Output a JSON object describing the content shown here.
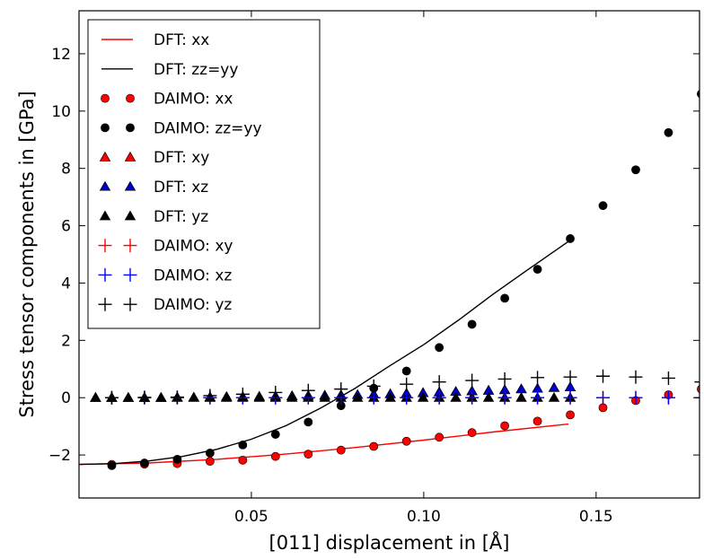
{
  "chart_data": {
    "type": "scatter",
    "xlabel": "[011] displacement in [Å]",
    "ylabel": "Stress tensor components in [GPa]",
    "xlim": [
      0.0,
      0.18
    ],
    "ylim": [
      -3.5,
      13.5
    ],
    "xticks": [
      0.05,
      0.1,
      0.15
    ],
    "xtick_labels": [
      "0.05",
      "0.10",
      "0.15"
    ],
    "yticks": [
      -2,
      0,
      2,
      4,
      6,
      8,
      10,
      12
    ],
    "ytick_labels": [
      "−2",
      "0",
      "2",
      "4",
      "6",
      "8",
      "10",
      "12"
    ],
    "grid": false,
    "legend_position": "upper-left",
    "series": [
      {
        "name": "DFT: xx",
        "kind": "line",
        "color": "#ff0000",
        "x": [
          0.0,
          0.02,
          0.04,
          0.06,
          0.08,
          0.1,
          0.12,
          0.142
        ],
        "y": [
          -2.33,
          -2.28,
          -2.15,
          -1.97,
          -1.74,
          -1.48,
          -1.2,
          -0.92
        ]
      },
      {
        "name": "DFT: zz=yy",
        "kind": "line",
        "color": "#000000",
        "x": [
          0.0,
          0.01,
          0.02,
          0.03,
          0.04,
          0.05,
          0.06,
          0.07,
          0.08,
          0.09,
          0.1,
          0.11,
          0.12,
          0.13,
          0.142
        ],
        "y": [
          -2.33,
          -2.3,
          -2.21,
          -2.05,
          -1.8,
          -1.45,
          -0.98,
          -0.37,
          0.32,
          1.1,
          1.85,
          2.7,
          3.6,
          4.45,
          5.45
        ]
      },
      {
        "name": "DAIMO: xx",
        "kind": "circle",
        "color": "#ff0000",
        "x": [
          0.0095,
          0.019,
          0.0285,
          0.038,
          0.0475,
          0.057,
          0.0665,
          0.076,
          0.0855,
          0.095,
          0.1045,
          0.114,
          0.1235,
          0.133,
          0.1425,
          0.152,
          0.1615,
          0.171,
          0.1805
        ],
        "y": [
          -2.33,
          -2.32,
          -2.3,
          -2.22,
          -2.18,
          -2.05,
          -1.97,
          -1.83,
          -1.7,
          -1.52,
          -1.38,
          -1.22,
          -0.98,
          -0.82,
          -0.6,
          -0.35,
          -0.1,
          0.1,
          0.3
        ]
      },
      {
        "name": "DAIMO: zz=yy",
        "kind": "circle",
        "color": "#000000",
        "x": [
          0.0095,
          0.019,
          0.0285,
          0.038,
          0.0475,
          0.057,
          0.0665,
          0.076,
          0.0855,
          0.095,
          0.1045,
          0.114,
          0.1235,
          0.133,
          0.1425,
          0.152,
          0.1615,
          0.171,
          0.1805
        ],
        "y": [
          -2.37,
          -2.28,
          -2.15,
          -1.93,
          -1.65,
          -1.28,
          -0.85,
          -0.28,
          0.33,
          0.93,
          1.75,
          2.56,
          3.47,
          4.48,
          5.55,
          6.7,
          7.95,
          9.25,
          10.6
        ]
      },
      {
        "name": "DFT: xy",
        "kind": "triangle",
        "color": "#ff0000",
        "x": [
          0.0048,
          0.0095,
          0.0143,
          0.019,
          0.0238,
          0.0285,
          0.0333,
          0.038,
          0.0428,
          0.0475,
          0.0523,
          0.057,
          0.0618,
          0.0665,
          0.0713,
          0.076,
          0.0808,
          0.0855,
          0.0903,
          0.095,
          0.0998,
          0.1045,
          0.1093,
          0.114,
          0.1188,
          0.1235,
          0.1283,
          0.133,
          0.1378,
          0.1425
        ],
        "y": [
          0.0,
          0.0,
          0.0,
          0.0,
          0.0,
          0.01,
          0.01,
          0.02,
          0.03,
          0.03,
          0.04,
          0.05,
          0.06,
          0.07,
          0.08,
          0.09,
          0.1,
          0.12,
          0.13,
          0.15,
          0.17,
          0.19,
          0.21,
          0.23,
          0.25,
          0.27,
          0.3,
          0.32,
          0.35,
          0.37
        ]
      },
      {
        "name": "DFT: xz",
        "kind": "triangle",
        "color": "#0000cc",
        "x": [
          0.0048,
          0.0095,
          0.0143,
          0.019,
          0.0238,
          0.0285,
          0.0333,
          0.038,
          0.0428,
          0.0475,
          0.0523,
          0.057,
          0.0618,
          0.0665,
          0.0713,
          0.076,
          0.0808,
          0.0855,
          0.0903,
          0.095,
          0.0998,
          0.1045,
          0.1093,
          0.114,
          0.1188,
          0.1235,
          0.1283,
          0.133,
          0.1378,
          0.1425
        ],
        "y": [
          0.0,
          0.0,
          0.0,
          0.0,
          0.0,
          0.01,
          0.01,
          0.02,
          0.03,
          0.03,
          0.04,
          0.05,
          0.06,
          0.07,
          0.08,
          0.09,
          0.1,
          0.12,
          0.13,
          0.15,
          0.17,
          0.19,
          0.21,
          0.23,
          0.25,
          0.27,
          0.3,
          0.32,
          0.35,
          0.37
        ]
      },
      {
        "name": "DFT: yz",
        "kind": "triangle",
        "color": "#000000",
        "x": [
          0.0048,
          0.0095,
          0.0143,
          0.019,
          0.0238,
          0.0285,
          0.0333,
          0.038,
          0.0428,
          0.0475,
          0.0523,
          0.057,
          0.0618,
          0.0665,
          0.0713,
          0.076,
          0.0808,
          0.0855,
          0.0903,
          0.095,
          0.0998,
          0.1045,
          0.1093,
          0.114,
          0.1188,
          0.1235,
          0.1283,
          0.133,
          0.1378,
          0.1425
        ],
        "y": [
          0.0,
          0.0,
          0.0,
          0.0,
          0.0,
          0.0,
          0.0,
          0.0,
          0.0,
          0.0,
          0.0,
          0.0,
          0.0,
          0.0,
          0.0,
          0.0,
          0.0,
          0.0,
          0.0,
          0.0,
          0.0,
          0.0,
          0.0,
          0.0,
          0.0,
          0.0,
          0.0,
          0.0,
          0.0,
          0.0
        ]
      },
      {
        "name": "DAIMO: xy",
        "kind": "plus",
        "color": "#ff0000",
        "x": [
          0.0095,
          0.019,
          0.0285,
          0.038,
          0.0475,
          0.057,
          0.0665,
          0.076,
          0.0855,
          0.095,
          0.1045,
          0.114,
          0.1235,
          0.133,
          0.1425,
          0.152,
          0.1615,
          0.171,
          0.1805
        ],
        "y": [
          0.0,
          0.0,
          0.0,
          0.0,
          0.0,
          0.0,
          0.0,
          0.0,
          0.0,
          0.0,
          0.0,
          0.0,
          0.0,
          0.0,
          0.0,
          0.0,
          0.0,
          0.0,
          0.0
        ]
      },
      {
        "name": "DAIMO: xz",
        "kind": "plus",
        "color": "#0000ff",
        "x": [
          0.0095,
          0.019,
          0.0285,
          0.038,
          0.0475,
          0.057,
          0.0665,
          0.076,
          0.0855,
          0.095,
          0.1045,
          0.114,
          0.1235,
          0.133,
          0.1425,
          0.152,
          0.1615,
          0.171,
          0.1805
        ],
        "y": [
          0.0,
          0.0,
          0.0,
          0.0,
          0.0,
          0.0,
          0.0,
          0.0,
          0.0,
          0.0,
          0.0,
          0.0,
          0.0,
          0.0,
          0.0,
          0.0,
          0.0,
          0.0,
          0.0
        ]
      },
      {
        "name": "DAIMO: yz",
        "kind": "plus",
        "color": "#000000",
        "x": [
          0.0095,
          0.019,
          0.0285,
          0.038,
          0.0475,
          0.057,
          0.0665,
          0.076,
          0.0855,
          0.095,
          0.1045,
          0.114,
          0.1235,
          0.133,
          0.1425,
          0.152,
          0.1615,
          0.171,
          0.1805
        ],
        "y": [
          0.0,
          0.01,
          0.02,
          0.07,
          0.12,
          0.18,
          0.25,
          0.3,
          0.4,
          0.47,
          0.55,
          0.6,
          0.65,
          0.7,
          0.72,
          0.75,
          0.72,
          0.68,
          0.55
        ]
      }
    ]
  }
}
